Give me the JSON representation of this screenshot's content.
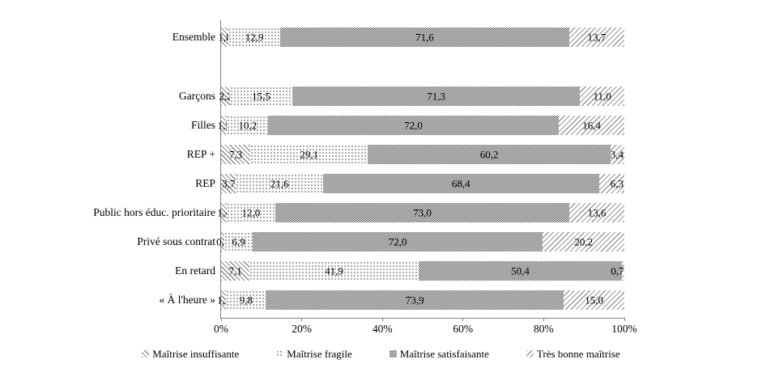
{
  "chart_data": {
    "type": "bar",
    "variant": "horizontal-stacked-100",
    "title": "",
    "xlabel": "",
    "ylabel": "",
    "categories": [
      "Ensemble",
      "Garçons",
      "Filles",
      "REP +",
      "REP",
      "Public hors éduc. prioritaire",
      "Privé sous contrat",
      "En retard",
      "« À l'heure »"
    ],
    "series": [
      {
        "name": "Maîtrise insuffisante",
        "pattern": "diagonal-backslash-hatch",
        "values": [
          1.8,
          2.2,
          1.5,
          7.3,
          3.7,
          1.4,
          0.9,
          7.1,
          1.3
        ],
        "labels": [
          "1,8",
          "2,2",
          "1,5",
          "7,3",
          "3,7",
          "1,4",
          "0,9",
          "7,1",
          "1,3"
        ]
      },
      {
        "name": "Maîtrise fragile",
        "pattern": "dots",
        "values": [
          12.9,
          15.5,
          10.2,
          29.1,
          21.6,
          12.0,
          6.9,
          41.9,
          9.8
        ],
        "labels": [
          "12,9",
          "15,5",
          "10,2",
          "29,1",
          "21,6",
          "12,0",
          "6,9",
          "41,9",
          "9,8"
        ]
      },
      {
        "name": "Maîtrise satisfaisante",
        "pattern": "gray-checker",
        "values": [
          71.6,
          71.3,
          72.0,
          60.2,
          68.4,
          73.0,
          72.0,
          50.4,
          73.9
        ],
        "labels": [
          "71,6",
          "71,3",
          "72,0",
          "60,2",
          "68,4",
          "73,0",
          "72,0",
          "50,4",
          "73,9"
        ]
      },
      {
        "name": "Très bonne maîtrise",
        "pattern": "diagonal-slash-hatch",
        "values": [
          13.7,
          11.0,
          16.4,
          3.4,
          6.3,
          13.6,
          20.2,
          0.7,
          15.0
        ],
        "labels": [
          "13,7",
          "11,0",
          "16,4",
          "3,4",
          "6,3",
          "13,6",
          "20,2",
          "0,7",
          "15,0"
        ]
      }
    ],
    "x_axis": {
      "min": 0,
      "max": 100,
      "tick_labels": [
        "0%",
        "20%",
        "40%",
        "60%",
        "80%",
        "100%"
      ],
      "tick_values": [
        0,
        20,
        40,
        60,
        80,
        100
      ]
    },
    "legend_position": "bottom",
    "grid": "off",
    "axis_color": "#808080",
    "text_color": "#000000"
  }
}
